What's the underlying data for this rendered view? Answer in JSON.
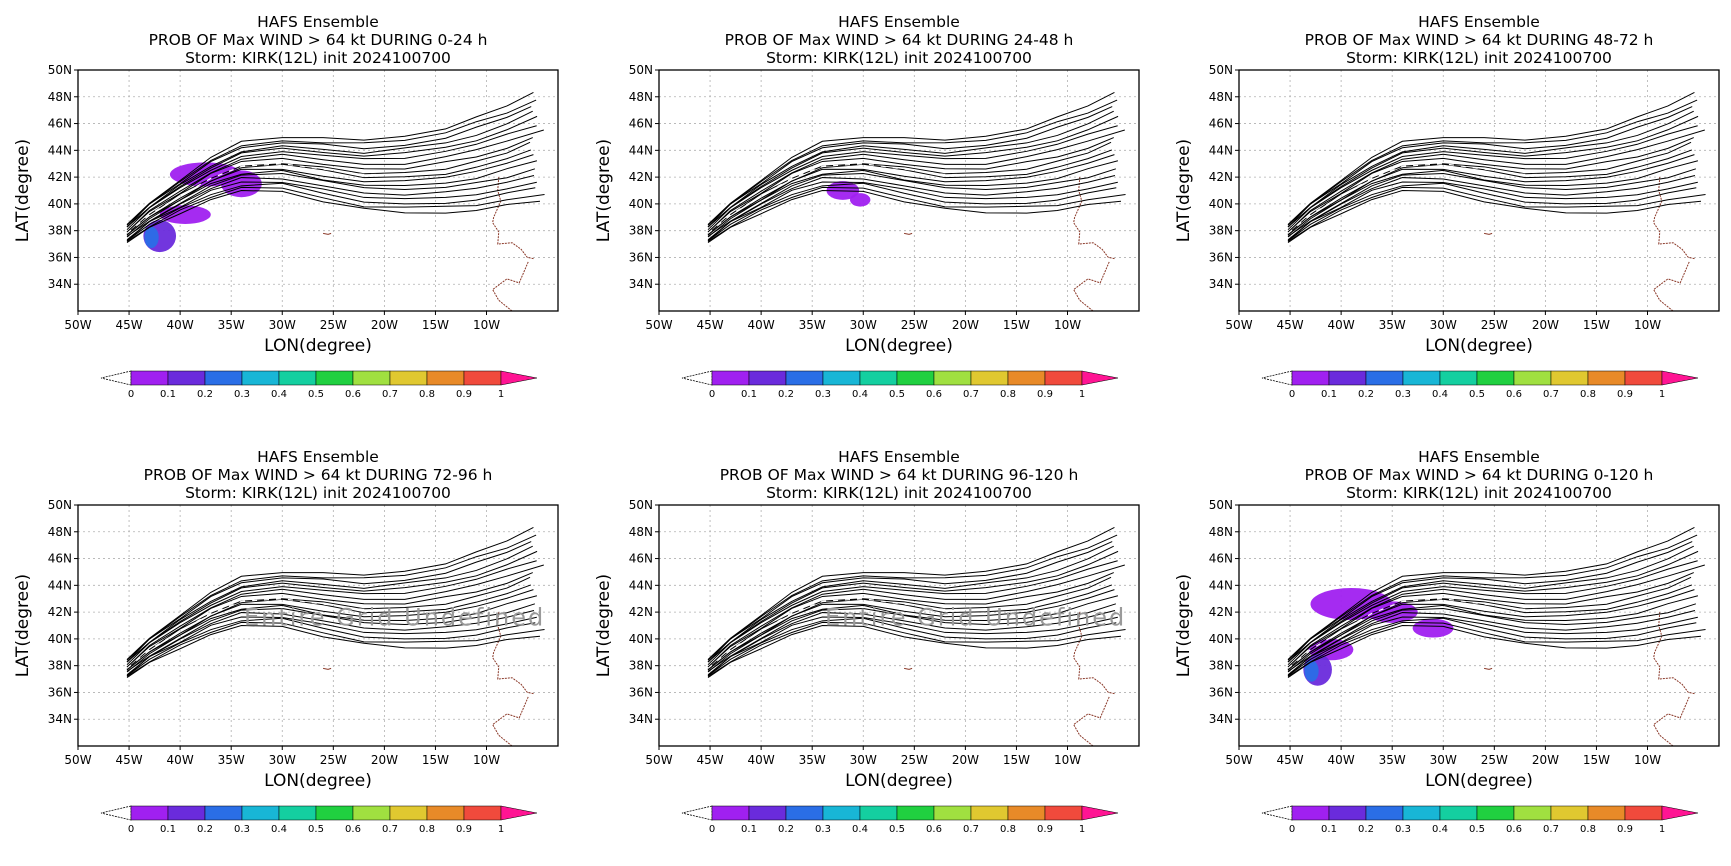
{
  "panel_titles": {
    "line1": "HAFS Ensemble",
    "line3": "Storm: KIRK(12L) init 2024100700"
  },
  "chart_data": [
    {
      "type": "heatmap",
      "title": [
        "HAFS Ensemble",
        "PROB OF Max WIND > 64 kt DURING  0-24 h",
        "Storm: KIRK(12L) init 2024100700"
      ],
      "xlabel": "LON(degree)",
      "ylabel": "LAT(degree)",
      "xlim": [
        -50,
        -3
      ],
      "ylim": [
        32,
        50
      ],
      "x_ticks": [
        "50W",
        "45W",
        "40W",
        "35W",
        "30W",
        "25W",
        "20W",
        "15W",
        "10W"
      ],
      "y_ticks": [
        "34N",
        "36N",
        "38N",
        "40N",
        "42N",
        "44N",
        "46N",
        "48N",
        "50N"
      ],
      "grid": true,
      "colorbar": [
        "0",
        "0.1",
        "0.2",
        "0.3",
        "0.4",
        "0.5",
        "0.6",
        "0.7",
        "0.8",
        "0.9",
        "1"
      ],
      "annotation": "",
      "blobs": [
        {
          "lon": -37.5,
          "lat": 42.2,
          "rx": 3.5,
          "ry": 0.9,
          "p": 0.05
        },
        {
          "lon": -34.0,
          "lat": 41.5,
          "rx": 2.0,
          "ry": 1.0,
          "p": 0.05
        },
        {
          "lon": -39.5,
          "lat": 39.2,
          "rx": 2.5,
          "ry": 0.7,
          "p": 0.05
        },
        {
          "lon": -42.0,
          "lat": 37.6,
          "rx": 1.6,
          "ry": 1.2,
          "p": 0.1
        },
        {
          "lon": -42.8,
          "lat": 37.5,
          "rx": 0.7,
          "ry": 0.8,
          "p": 0.25
        }
      ]
    },
    {
      "type": "heatmap",
      "title": [
        "HAFS Ensemble",
        "PROB OF Max WIND > 64 kt DURING 24-48 h",
        "Storm: KIRK(12L) init 2024100700"
      ],
      "xlabel": "LON(degree)",
      "ylabel": "LAT(degree)",
      "xlim": [
        -50,
        -3
      ],
      "ylim": [
        32,
        50
      ],
      "x_ticks": [
        "50W",
        "45W",
        "40W",
        "35W",
        "30W",
        "25W",
        "20W",
        "15W",
        "10W"
      ],
      "y_ticks": [
        "34N",
        "36N",
        "38N",
        "40N",
        "42N",
        "44N",
        "46N",
        "48N",
        "50N"
      ],
      "grid": true,
      "colorbar": [
        "0",
        "0.1",
        "0.2",
        "0.3",
        "0.4",
        "0.5",
        "0.6",
        "0.7",
        "0.8",
        "0.9",
        "1"
      ],
      "annotation": "",
      "blobs": [
        {
          "lon": -32.0,
          "lat": 41.0,
          "rx": 1.6,
          "ry": 0.7,
          "p": 0.05
        },
        {
          "lon": -30.3,
          "lat": 40.3,
          "rx": 1.0,
          "ry": 0.5,
          "p": 0.05
        }
      ]
    },
    {
      "type": "heatmap",
      "title": [
        "HAFS Ensemble",
        "PROB OF Max WIND > 64 kt DURING 48-72 h",
        "Storm: KIRK(12L) init 2024100700"
      ],
      "xlabel": "LON(degree)",
      "ylabel": "LAT(degree)",
      "xlim": [
        -50,
        -3
      ],
      "ylim": [
        32,
        50
      ],
      "x_ticks": [
        "50W",
        "45W",
        "40W",
        "35W",
        "30W",
        "25W",
        "20W",
        "15W",
        "10W"
      ],
      "y_ticks": [
        "34N",
        "36N",
        "38N",
        "40N",
        "42N",
        "44N",
        "46N",
        "48N",
        "50N"
      ],
      "grid": true,
      "colorbar": [
        "0",
        "0.1",
        "0.2",
        "0.3",
        "0.4",
        "0.5",
        "0.6",
        "0.7",
        "0.8",
        "0.9",
        "1"
      ],
      "annotation": "",
      "blobs": []
    },
    {
      "type": "heatmap",
      "title": [
        "HAFS Ensemble",
        "PROB OF Max WIND > 64 kt DURING 72-96 h",
        "Storm: KIRK(12L) init 2024100700"
      ],
      "xlabel": "LON(degree)",
      "ylabel": "LAT(degree)",
      "xlim": [
        -50,
        -3
      ],
      "ylim": [
        32,
        50
      ],
      "x_ticks": [
        "50W",
        "45W",
        "40W",
        "35W",
        "30W",
        "25W",
        "20W",
        "15W",
        "10W"
      ],
      "y_ticks": [
        "34N",
        "36N",
        "38N",
        "40N",
        "42N",
        "44N",
        "46N",
        "48N",
        "50N"
      ],
      "grid": true,
      "colorbar": [
        "0",
        "0.1",
        "0.2",
        "0.3",
        "0.4",
        "0.5",
        "0.6",
        "0.7",
        "0.8",
        "0.9",
        "1"
      ],
      "annotation": "Entire Grid Undefined",
      "blobs": []
    },
    {
      "type": "heatmap",
      "title": [
        "HAFS Ensemble",
        "PROB OF Max WIND > 64 kt DURING 96-120 h",
        "Storm: KIRK(12L) init 2024100700"
      ],
      "xlabel": "LON(degree)",
      "ylabel": "LAT(degree)",
      "xlim": [
        -50,
        -3
      ],
      "ylim": [
        32,
        50
      ],
      "x_ticks": [
        "50W",
        "45W",
        "40W",
        "35W",
        "30W",
        "25W",
        "20W",
        "15W",
        "10W"
      ],
      "y_ticks": [
        "34N",
        "36N",
        "38N",
        "40N",
        "42N",
        "44N",
        "46N",
        "48N",
        "50N"
      ],
      "grid": true,
      "colorbar": [
        "0",
        "0.1",
        "0.2",
        "0.3",
        "0.4",
        "0.5",
        "0.6",
        "0.7",
        "0.8",
        "0.9",
        "1"
      ],
      "annotation": "Entire Grid Undefined",
      "blobs": []
    },
    {
      "type": "heatmap",
      "title": [
        "HAFS Ensemble",
        "PROB OF Max WIND > 64 kt DURING 0-120 h",
        "Storm: KIRK(12L) init 2024100700"
      ],
      "xlabel": "LON(degree)",
      "ylabel": "LAT(degree)",
      "xlim": [
        -50,
        -3
      ],
      "ylim": [
        32,
        50
      ],
      "x_ticks": [
        "50W",
        "45W",
        "40W",
        "35W",
        "30W",
        "25W",
        "20W",
        "15W",
        "10W"
      ],
      "y_ticks": [
        "34N",
        "36N",
        "38N",
        "40N",
        "42N",
        "44N",
        "46N",
        "48N",
        "50N"
      ],
      "grid": true,
      "colorbar": [
        "0",
        "0.1",
        "0.2",
        "0.3",
        "0.4",
        "0.5",
        "0.6",
        "0.7",
        "0.8",
        "0.9",
        "1"
      ],
      "annotation": "",
      "blobs": [
        {
          "lon": -39.0,
          "lat": 42.6,
          "rx": 4.0,
          "ry": 1.2,
          "p": 0.05
        },
        {
          "lon": -35.0,
          "lat": 42.0,
          "rx": 2.5,
          "ry": 0.8,
          "p": 0.05
        },
        {
          "lon": -31.0,
          "lat": 40.8,
          "rx": 2.0,
          "ry": 0.7,
          "p": 0.05
        },
        {
          "lon": -41.0,
          "lat": 39.2,
          "rx": 2.2,
          "ry": 0.8,
          "p": 0.05
        },
        {
          "lon": -42.3,
          "lat": 37.7,
          "rx": 1.4,
          "ry": 1.2,
          "p": 0.1
        },
        {
          "lon": -42.9,
          "lat": 37.6,
          "rx": 0.7,
          "ry": 0.8,
          "p": 0.25
        }
      ]
    }
  ],
  "track_colour": "#000000",
  "coast_colour": "#8b3a2a",
  "grid_colour": "#b0b0b0",
  "colorbar_colours": [
    "#a020f0",
    "#6a2bdc",
    "#2a6ee6",
    "#18b6d6",
    "#14cfa0",
    "#20d040",
    "#a0e040",
    "#e0c830",
    "#e88a28",
    "#f04a3c",
    "#ff1493"
  ]
}
